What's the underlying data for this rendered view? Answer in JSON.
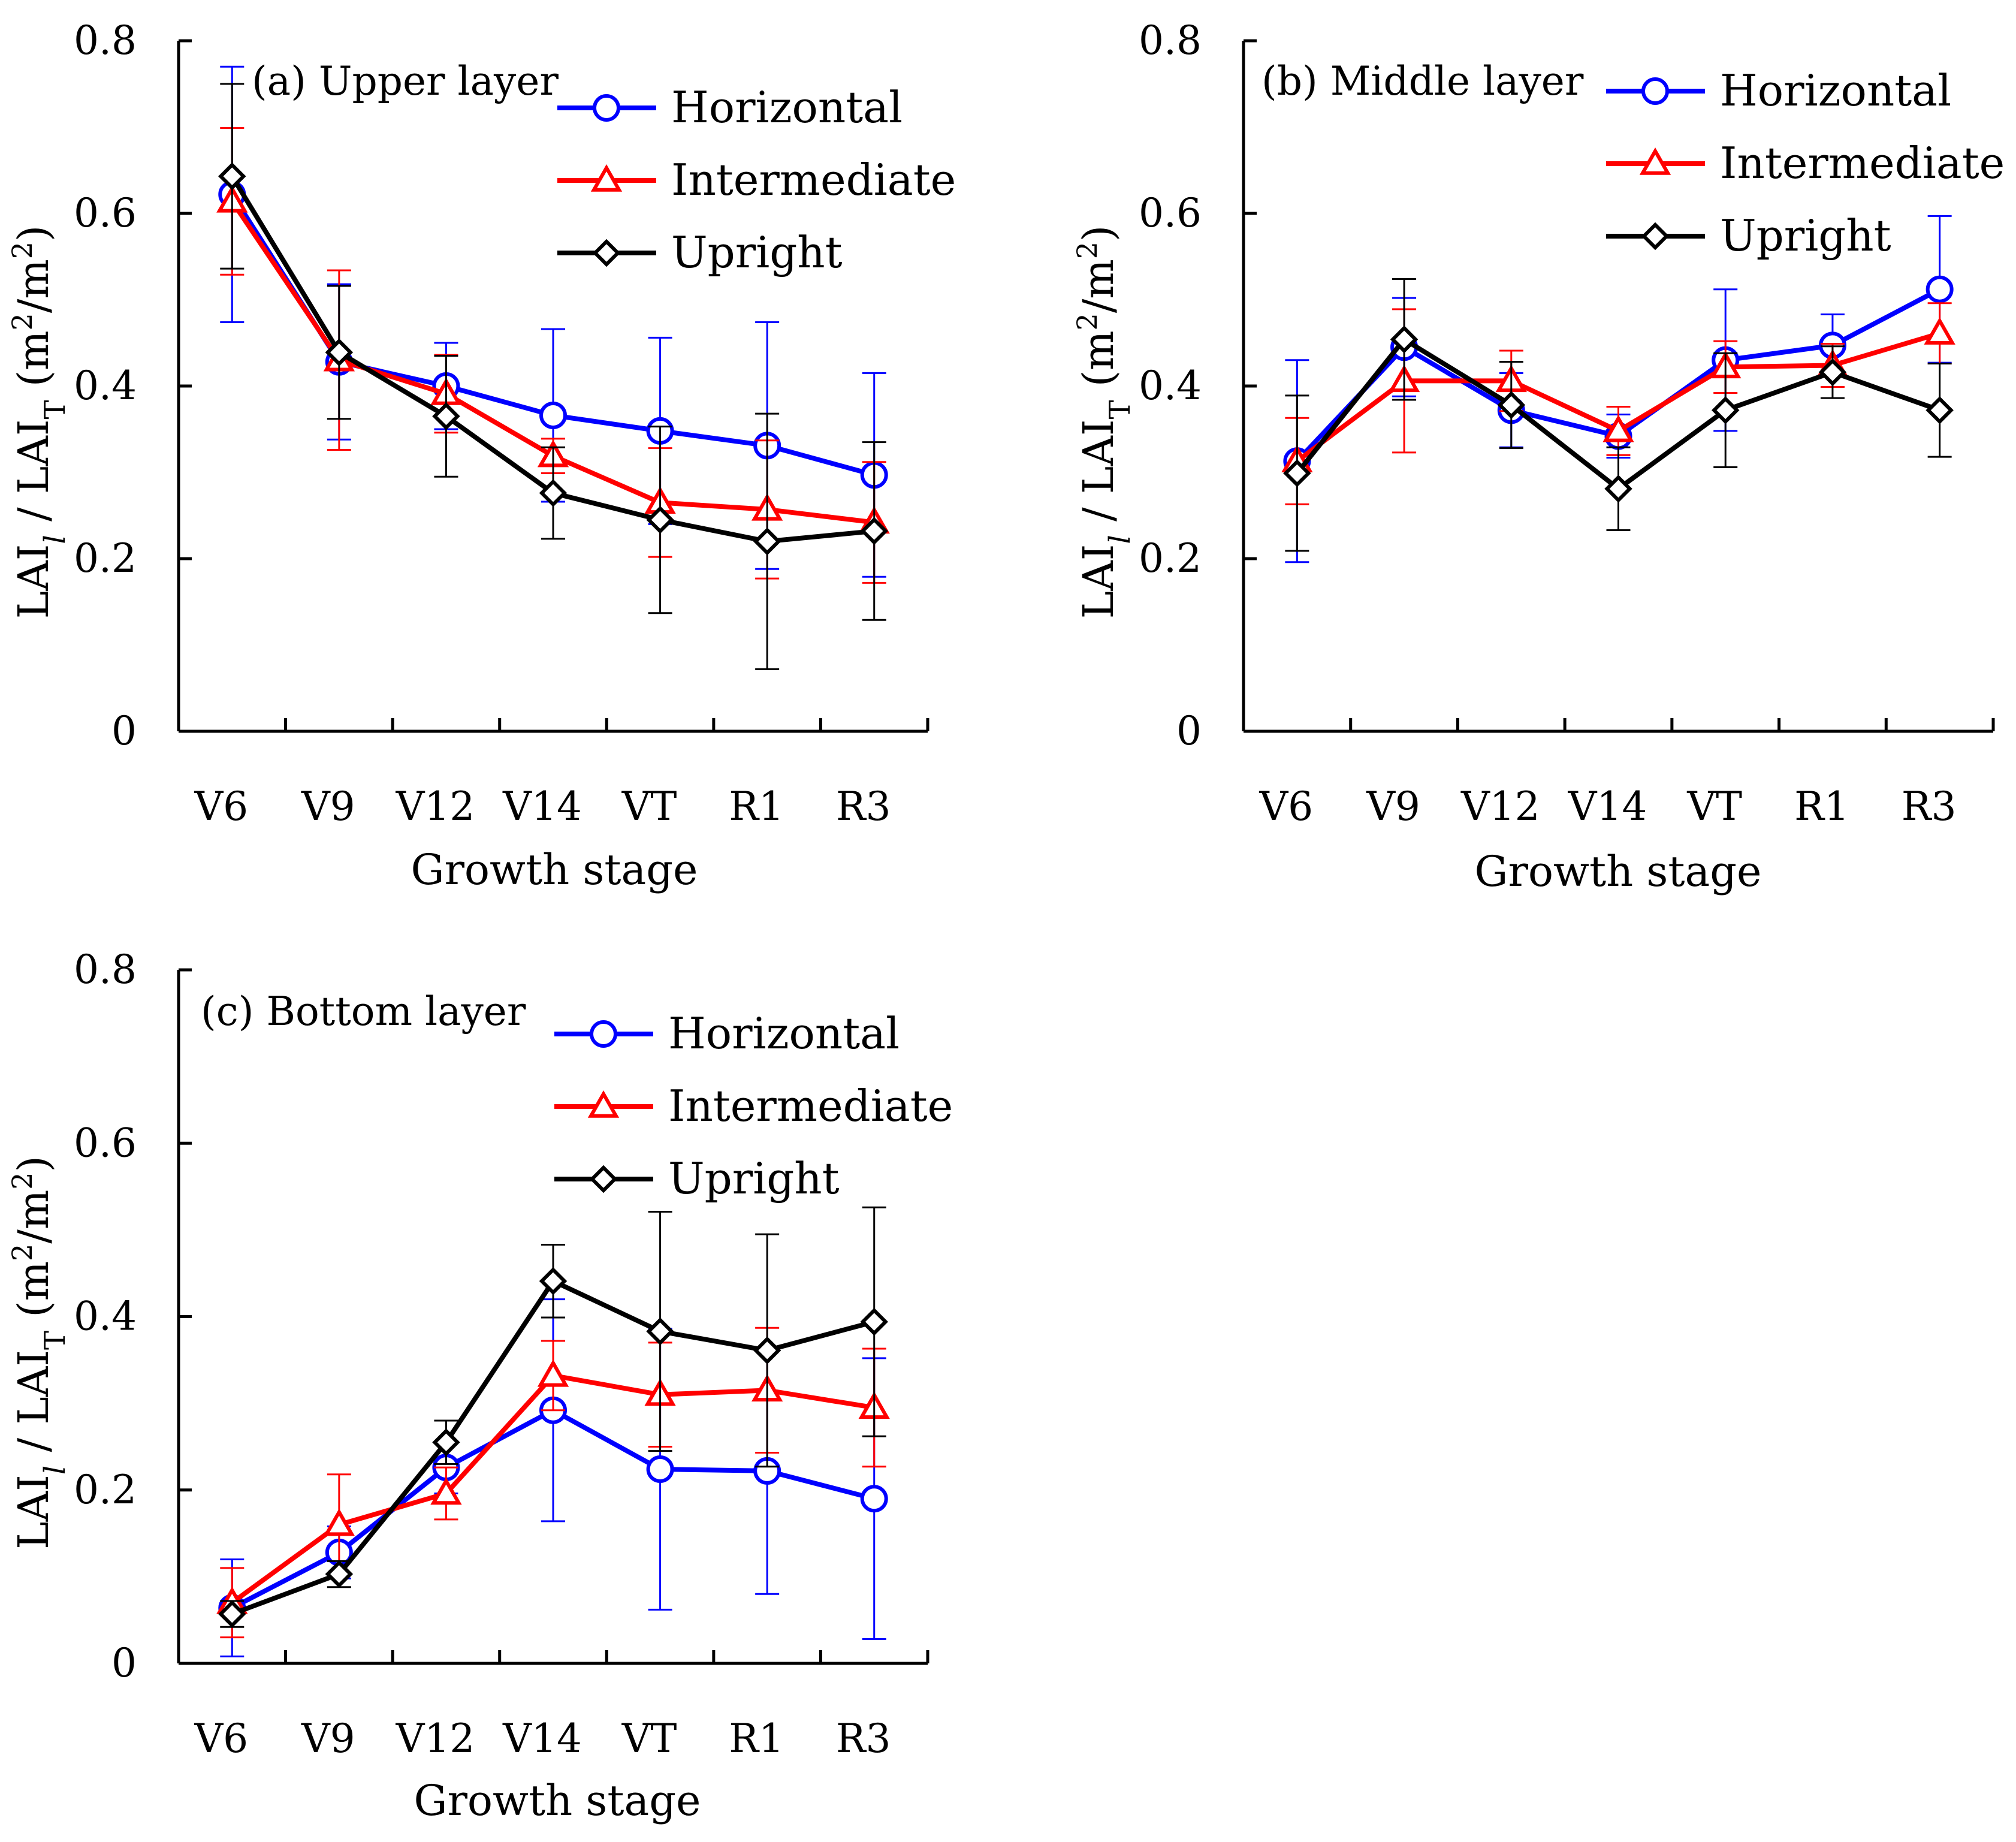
{
  "chart_data": [
    {
      "type": "line",
      "title": "(a) Upper layer",
      "xlabel": "Growth stage",
      "ylabel": "LAI_l / LAI_T (m2/m2)",
      "ylim": [
        0,
        0.8
      ],
      "yticks": [
        "0",
        "0.2",
        "0.4",
        "0.6",
        "0.8"
      ],
      "categories": [
        "V6",
        "V9",
        "V12",
        "V14",
        "VT",
        "R1",
        "R3"
      ],
      "legend": "top-right",
      "series": [
        {
          "name": "Horizontal",
          "color": "#0000ff",
          "marker": "circle",
          "values": [
            0.622,
            0.428,
            0.4,
            0.366,
            0.348,
            0.331,
            0.297
          ],
          "errors": [
            0.148,
            0.09,
            0.05,
            0.1,
            0.108,
            0.143,
            0.118
          ]
        },
        {
          "name": "Intermediate",
          "color": "#ff0000",
          "marker": "triangle",
          "values": [
            0.614,
            0.43,
            0.391,
            0.319,
            0.265,
            0.257,
            0.242
          ],
          "errors": [
            0.085,
            0.104,
            0.045,
            0.02,
            0.063,
            0.08,
            0.07
          ]
        },
        {
          "name": "Upright",
          "color": "#000000",
          "marker": "diamond",
          "values": [
            0.643,
            0.439,
            0.365,
            0.276,
            0.245,
            0.22,
            0.232
          ],
          "errors": [
            0.107,
            0.077,
            0.07,
            0.053,
            0.108,
            0.148,
            0.103
          ]
        }
      ]
    },
    {
      "type": "line",
      "title": "(b) Middle layer",
      "xlabel": "Growth stage",
      "ylabel": "LAI_l / LAI_T (m2/m2)",
      "ylim": [
        0,
        0.8
      ],
      "yticks": [
        "0",
        "0.2",
        "0.4",
        "0.6",
        "0.8"
      ],
      "categories": [
        "V6",
        "V9",
        "V12",
        "V14",
        "VT",
        "R1",
        "R3"
      ],
      "legend": "top-right",
      "series": [
        {
          "name": "Horizontal",
          "color": "#0000ff",
          "marker": "circle",
          "values": [
            0.313,
            0.445,
            0.372,
            0.342,
            0.43,
            0.447,
            0.512
          ],
          "errors": [
            0.117,
            0.057,
            0.043,
            0.025,
            0.082,
            0.036,
            0.085
          ]
        },
        {
          "name": "Intermediate",
          "color": "#ff0000",
          "marker": "triangle",
          "values": [
            0.313,
            0.406,
            0.406,
            0.348,
            0.422,
            0.424,
            0.461
          ],
          "errors": [
            0.05,
            0.083,
            0.035,
            0.028,
            0.03,
            0.025,
            0.035
          ]
        },
        {
          "name": "Upright",
          "color": "#000000",
          "marker": "diamond",
          "values": [
            0.299,
            0.454,
            0.378,
            0.281,
            0.372,
            0.416,
            0.372
          ],
          "errors": [
            0.09,
            0.07,
            0.05,
            0.048,
            0.066,
            0.03,
            0.054
          ]
        }
      ]
    },
    {
      "type": "line",
      "title": "(c) Bottom layer",
      "xlabel": "Growth stage",
      "ylabel": "LAI_l / LAI_T (m2/m2)",
      "ylim": [
        0,
        0.8
      ],
      "yticks": [
        "0",
        "0.2",
        "0.4",
        "0.6",
        "0.8"
      ],
      "categories": [
        "V6",
        "V9",
        "V12",
        "V14",
        "VT",
        "R1",
        "R3"
      ],
      "legend": "top-right",
      "series": [
        {
          "name": "Horizontal",
          "color": "#0000ff",
          "marker": "circle",
          "values": [
            0.064,
            0.128,
            0.226,
            0.292,
            0.224,
            0.222,
            0.19
          ],
          "errors": [
            0.056,
            0.03,
            0.03,
            0.128,
            0.162,
            0.142,
            0.162
          ]
        },
        {
          "name": "Intermediate",
          "color": "#ff0000",
          "marker": "triangle",
          "values": [
            0.07,
            0.16,
            0.196,
            0.332,
            0.31,
            0.315,
            0.295
          ],
          "errors": [
            0.04,
            0.058,
            0.03,
            0.04,
            0.06,
            0.072,
            0.068
          ]
        },
        {
          "name": "Upright",
          "color": "#000000",
          "marker": "diamond",
          "values": [
            0.057,
            0.103,
            0.255,
            0.441,
            0.383,
            0.361,
            0.394
          ],
          "errors": [
            0.015,
            0.015,
            0.025,
            0.042,
            0.138,
            0.134,
            0.132
          ]
        }
      ]
    }
  ]
}
